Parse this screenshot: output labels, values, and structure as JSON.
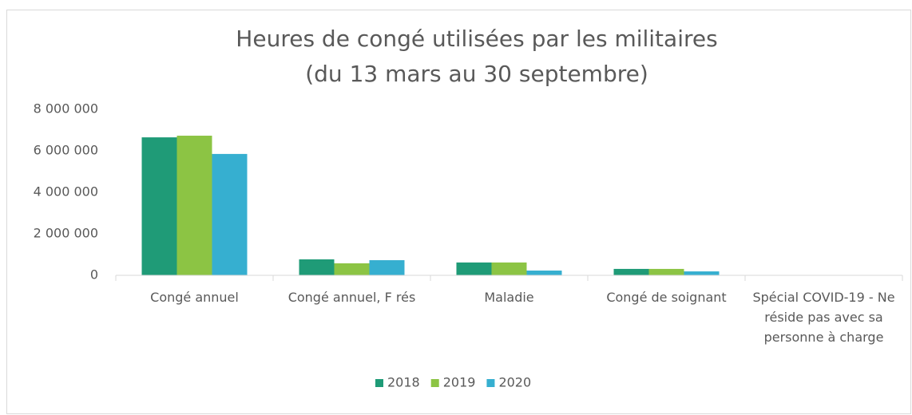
{
  "chart_data": {
    "type": "bar",
    "title": "Heures de congé utilisées par les militaires",
    "subtitle": "(du 13 mars au 30 septembre)",
    "categories": [
      "Congé annuel",
      "Congé annuel, F rés",
      "Maladie",
      "Congé de soignant",
      "Spécial COVID-19 - Ne réside pas avec sa personne à charge"
    ],
    "series": [
      {
        "name": "2018",
        "color": "#1f9b77",
        "values": [
          6650000,
          770000,
          620000,
          310000,
          0
        ]
      },
      {
        "name": "2019",
        "color": "#8cc444",
        "values": [
          6730000,
          580000,
          620000,
          310000,
          0
        ]
      },
      {
        "name": "2020",
        "color": "#36afd0",
        "values": [
          5850000,
          730000,
          230000,
          190000,
          0
        ]
      }
    ],
    "ylim": [
      0,
      8000000
    ],
    "yticks": [
      {
        "value": 0,
        "label": "0"
      },
      {
        "value": 2000000,
        "label": "2 000 000"
      },
      {
        "value": 4000000,
        "label": "4 000 000"
      },
      {
        "value": 6000000,
        "label": "6 000 000"
      },
      {
        "value": 8000000,
        "label": "8 000 000"
      }
    ],
    "legend": "bottom",
    "grid": false
  }
}
